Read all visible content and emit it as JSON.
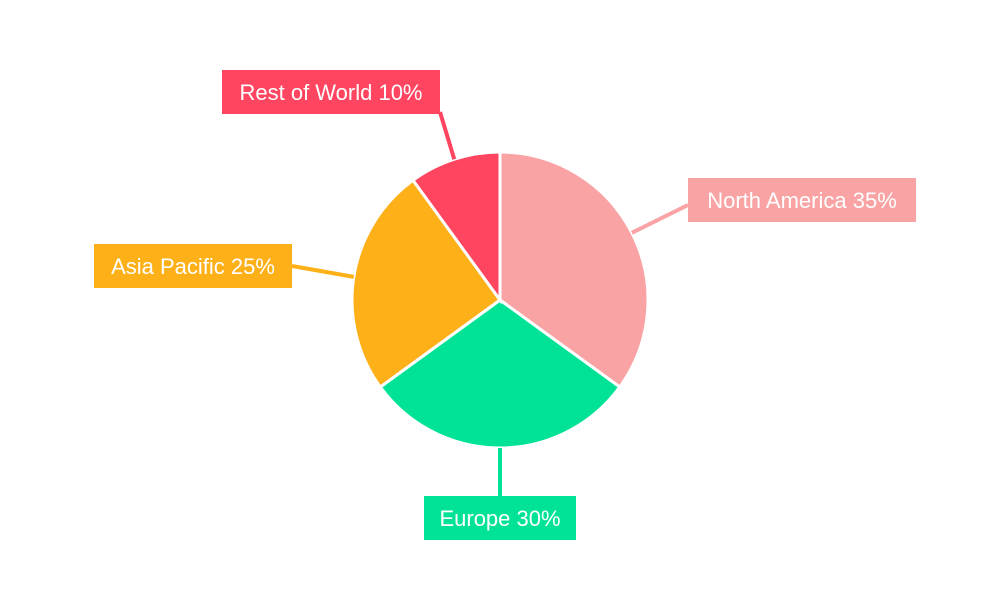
{
  "chart_data": {
    "type": "pie",
    "start_angle": "top, clockwise",
    "categories": [
      "North America",
      "Europe",
      "Asia Pacific",
      "Rest of World"
    ],
    "values": [
      35,
      30,
      25,
      10
    ],
    "labels": [
      "North America 35%",
      "Europe 30%",
      "Asia Pacific 25%",
      "Rest of World 10%"
    ],
    "colors": [
      "#F9A3A4",
      "#00E396",
      "#FEB019",
      "#FF4560"
    ],
    "legend": "none"
  }
}
